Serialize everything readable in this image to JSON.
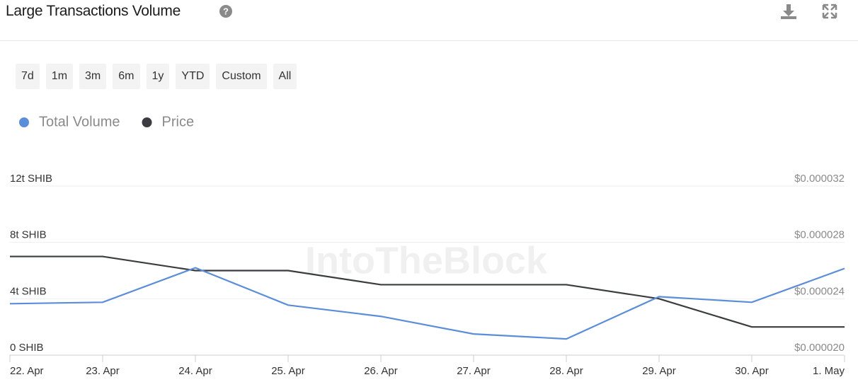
{
  "chart_data": {
    "type": "line",
    "title": "Large Transactions Volume",
    "categories": [
      "22. Apr",
      "23. Apr",
      "24. Apr",
      "25. Apr",
      "26. Apr",
      "27. Apr",
      "28. Apr",
      "29. Apr",
      "30. Apr",
      "1. May"
    ],
    "series": [
      {
        "name": "Total Volume",
        "color": "#5b8dd9",
        "values": [
          3.65,
          3.75,
          6.2,
          3.55,
          2.75,
          1.5,
          1.15,
          4.15,
          3.75,
          6.15
        ]
      },
      {
        "name": "Price",
        "color": "#3a3c40",
        "axis": "y2",
        "values": [
          2.7e-05,
          2.7e-05,
          2.6e-05,
          2.6e-05,
          2.5e-05,
          2.5e-05,
          2.5e-05,
          2.4e-05,
          2.2e-05,
          2.2e-05
        ]
      }
    ],
    "ylim": [
      0,
      12
    ],
    "yticks": [
      {
        "value": 0,
        "label": "0 SHIB"
      },
      {
        "value": 4,
        "label": "4t SHIB"
      },
      {
        "value": 8,
        "label": "8t SHIB"
      },
      {
        "value": 12,
        "label": "12t SHIB"
      }
    ],
    "y2lim": [
      2e-05,
      3.2e-05
    ],
    "y2ticks": [
      {
        "value": 2e-05,
        "label": "$0.000020"
      },
      {
        "value": 2.4e-05,
        "label": "$0.000024"
      },
      {
        "value": 2.8e-05,
        "label": "$0.000028"
      },
      {
        "value": 3.2e-05,
        "label": "$0.000032"
      }
    ],
    "grid": true
  },
  "range_buttons": [
    "7d",
    "1m",
    "3m",
    "6m",
    "1y",
    "YTD",
    "Custom",
    "All"
  ],
  "watermark": "IntoTheBlock"
}
